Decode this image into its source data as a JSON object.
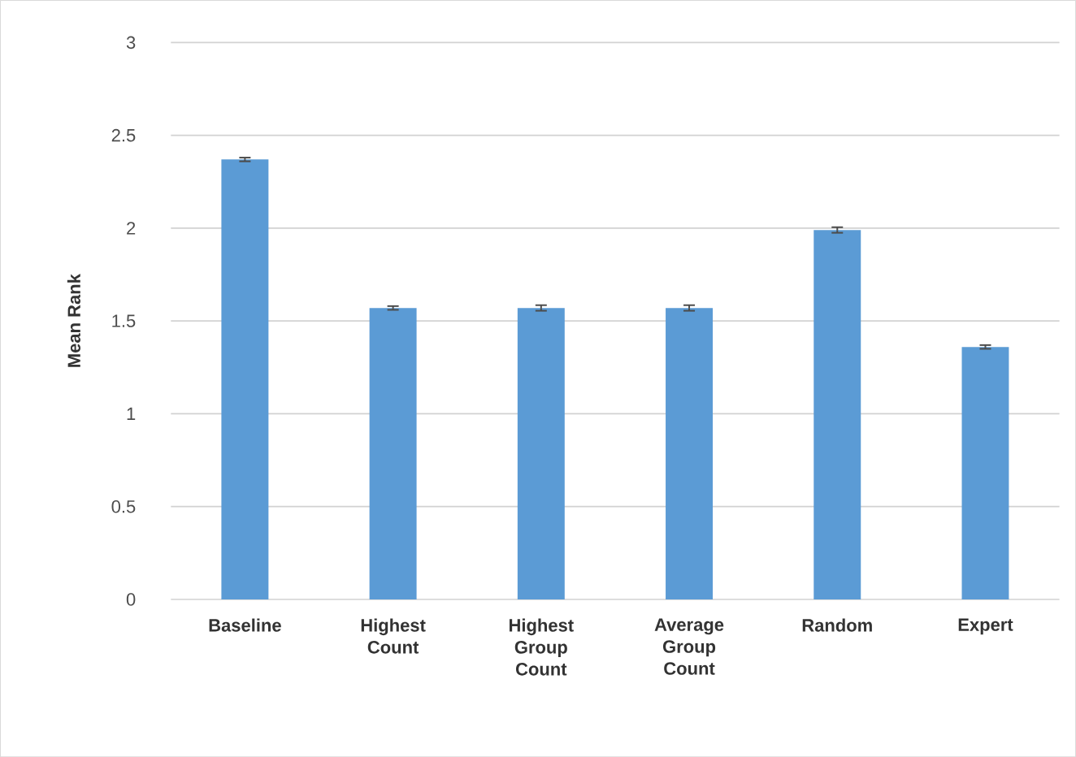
{
  "chart_data": {
    "type": "bar",
    "ylabel": "Mean Rank",
    "categories": [
      "Baseline",
      "Highest Count",
      "Highest Group Count",
      "Average Group Count",
      "Random",
      "Expert"
    ],
    "values": [
      2.37,
      1.57,
      1.57,
      1.57,
      1.99,
      1.36
    ],
    "errors": [
      0.01,
      0.01,
      0.015,
      0.015,
      0.015,
      0.01
    ],
    "color": "#5b9bd5",
    "ylim": [
      0,
      3
    ],
    "yticks": [
      0,
      0.5,
      1,
      1.5,
      2,
      2.5,
      3
    ],
    "grid": "y"
  }
}
